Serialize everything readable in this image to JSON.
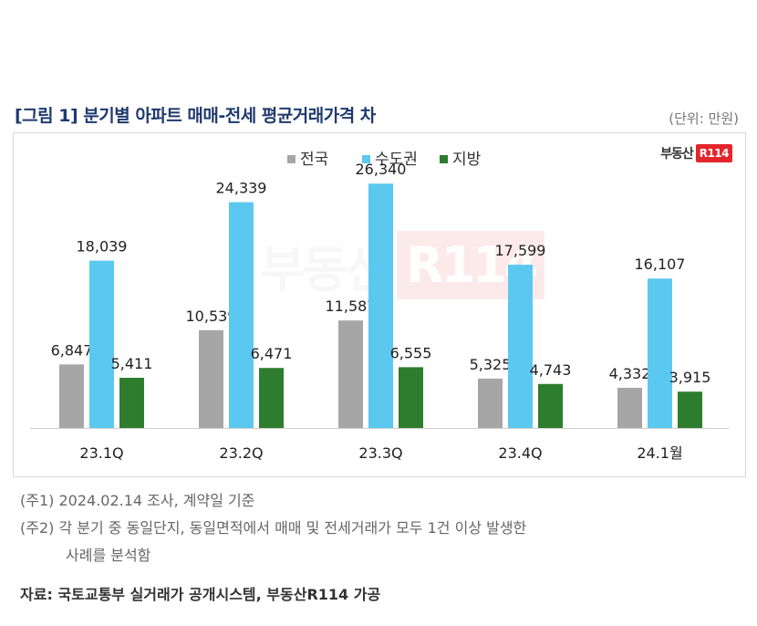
{
  "title": "[그림 1] 분기별 아파트 매매-전세 평균거래가격 차",
  "unit": "(단위: 만원)",
  "logo": {
    "text": "부동산",
    "badge": "R114"
  },
  "watermark": {
    "text": "부동산",
    "badge": "R114"
  },
  "notes": [
    "(주1) 2024.02.14 조사, 계약일 기준",
    "(주2) 각 분기 중 동일단지, 동일면적에서 매매 및 전세거래가 모두 1건 이상 발생한",
    "사례를 분석함"
  ],
  "source": "자료: 국토교통부 실거래가 공개시스템, 부동산R114 가공",
  "colors": {
    "전국": "#a6a6a6",
    "수도권": "#5bc8f0",
    "지방": "#2e7d2e"
  },
  "chart_data": {
    "type": "bar",
    "categories": [
      "23.1Q",
      "23.2Q",
      "23.3Q",
      "23.4Q",
      "24.1월"
    ],
    "series": [
      {
        "name": "전국",
        "values": [
          6847,
          10539,
          11587,
          5325,
          4332
        ]
      },
      {
        "name": "수도권",
        "values": [
          18039,
          24339,
          26340,
          17599,
          16107
        ]
      },
      {
        "name": "지방",
        "values": [
          5411,
          6471,
          6555,
          4743,
          3915
        ]
      }
    ],
    "ylim": [
      0,
      30000
    ],
    "legend_position": "top-center",
    "data_labels": true,
    "grid": false
  }
}
